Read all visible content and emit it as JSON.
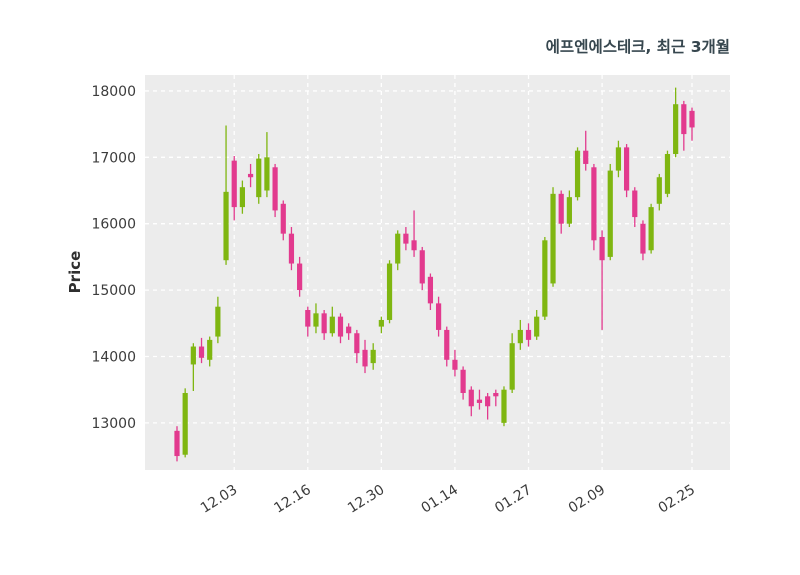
{
  "chart": {
    "title": "에프엔에스테크, 최근 3개월",
    "ylabel": "Price"
  },
  "chart_data": {
    "type": "candlestick",
    "title": "에프엔에스테크, 최근 3개월",
    "xlabel": "",
    "ylabel": "Price",
    "grid": true,
    "grid_style": "white-dashed-on-light-gray",
    "plot_bg": "#ececec",
    "up_color": "#7fb611",
    "down_color": "#e23a8e",
    "text_color": "#3c3c3c",
    "ylim": [
      12290,
      18240
    ],
    "y_ticks": [
      13000,
      14000,
      15000,
      16000,
      17000,
      18000
    ],
    "x_ticks": [
      {
        "label": "12.03",
        "index": 7
      },
      {
        "label": "12.16",
        "index": 16
      },
      {
        "label": "12.30",
        "index": 25
      },
      {
        "label": "01.14",
        "index": 34
      },
      {
        "label": "01.27",
        "index": 43
      },
      {
        "label": "02.09",
        "index": 52
      },
      {
        "label": "02.25",
        "index": 63
      }
    ],
    "candles_format": [
      "open",
      "high",
      "low",
      "close"
    ],
    "candles": [
      [
        12880,
        12950,
        12420,
        12500
      ],
      [
        12520,
        13520,
        12480,
        13450
      ],
      [
        13880,
        14200,
        13480,
        14150
      ],
      [
        14150,
        14280,
        13900,
        13980
      ],
      [
        13950,
        14300,
        13850,
        14250
      ],
      [
        14300,
        14900,
        14200,
        14750
      ],
      [
        15450,
        17480,
        15380,
        16480
      ],
      [
        16950,
        17020,
        16050,
        16250
      ],
      [
        16250,
        16650,
        16150,
        16550
      ],
      [
        16750,
        16900,
        16550,
        16700
      ],
      [
        16400,
        17050,
        16300,
        16980
      ],
      [
        16500,
        17380,
        16400,
        17000
      ],
      [
        16850,
        16900,
        16100,
        16200
      ],
      [
        16300,
        16350,
        15750,
        15850
      ],
      [
        15850,
        15950,
        15300,
        15400
      ],
      [
        15400,
        15500,
        14900,
        15000
      ],
      [
        14700,
        14750,
        14300,
        14450
      ],
      [
        14450,
        14800,
        14350,
        14650
      ],
      [
        14650,
        14700,
        14250,
        14350
      ],
      [
        14350,
        14750,
        14300,
        14600
      ],
      [
        14600,
        14650,
        14200,
        14300
      ],
      [
        14450,
        14500,
        14250,
        14350
      ],
      [
        14350,
        14400,
        13900,
        14050
      ],
      [
        14100,
        14250,
        13750,
        13850
      ],
      [
        13900,
        14200,
        13800,
        14100
      ],
      [
        14450,
        14600,
        14350,
        14550
      ],
      [
        14550,
        15450,
        14500,
        15400
      ],
      [
        15400,
        15900,
        15300,
        15850
      ],
      [
        15850,
        15950,
        15600,
        15700
      ],
      [
        15750,
        16200,
        15500,
        15600
      ],
      [
        15600,
        15650,
        15000,
        15100
      ],
      [
        15200,
        15250,
        14700,
        14800
      ],
      [
        14800,
        14900,
        14300,
        14400
      ],
      [
        14400,
        14450,
        13850,
        13950
      ],
      [
        13950,
        14100,
        13700,
        13800
      ],
      [
        13800,
        13850,
        13350,
        13450
      ],
      [
        13500,
        13550,
        13100,
        13250
      ],
      [
        13350,
        13500,
        13200,
        13300
      ],
      [
        13400,
        13450,
        13050,
        13250
      ],
      [
        13450,
        13500,
        13250,
        13400
      ],
      [
        13000,
        13550,
        12950,
        13500
      ],
      [
        13500,
        14350,
        13450,
        14200
      ],
      [
        14200,
        14550,
        14100,
        14400
      ],
      [
        14400,
        14500,
        14150,
        14250
      ],
      [
        14300,
        14700,
        14250,
        14600
      ],
      [
        14600,
        15800,
        14550,
        15750
      ],
      [
        15100,
        16550,
        15050,
        16450
      ],
      [
        16450,
        16500,
        15850,
        16000
      ],
      [
        16000,
        16500,
        15950,
        16400
      ],
      [
        16400,
        17150,
        16350,
        17100
      ],
      [
        17100,
        17400,
        16800,
        16900
      ],
      [
        16850,
        16900,
        15600,
        15750
      ],
      [
        15800,
        15900,
        14400,
        15450
      ],
      [
        15500,
        16900,
        15450,
        16800
      ],
      [
        16800,
        17250,
        16700,
        17150
      ],
      [
        17150,
        17200,
        16400,
        16500
      ],
      [
        16500,
        16550,
        15950,
        16100
      ],
      [
        16000,
        16050,
        15450,
        15550
      ],
      [
        15600,
        16300,
        15550,
        16250
      ],
      [
        16300,
        16750,
        16200,
        16700
      ],
      [
        16450,
        17100,
        16400,
        17050
      ],
      [
        17050,
        18050,
        17000,
        17800
      ],
      [
        17800,
        17850,
        17100,
        17350
      ],
      [
        17700,
        17750,
        17250,
        17450
      ]
    ]
  }
}
